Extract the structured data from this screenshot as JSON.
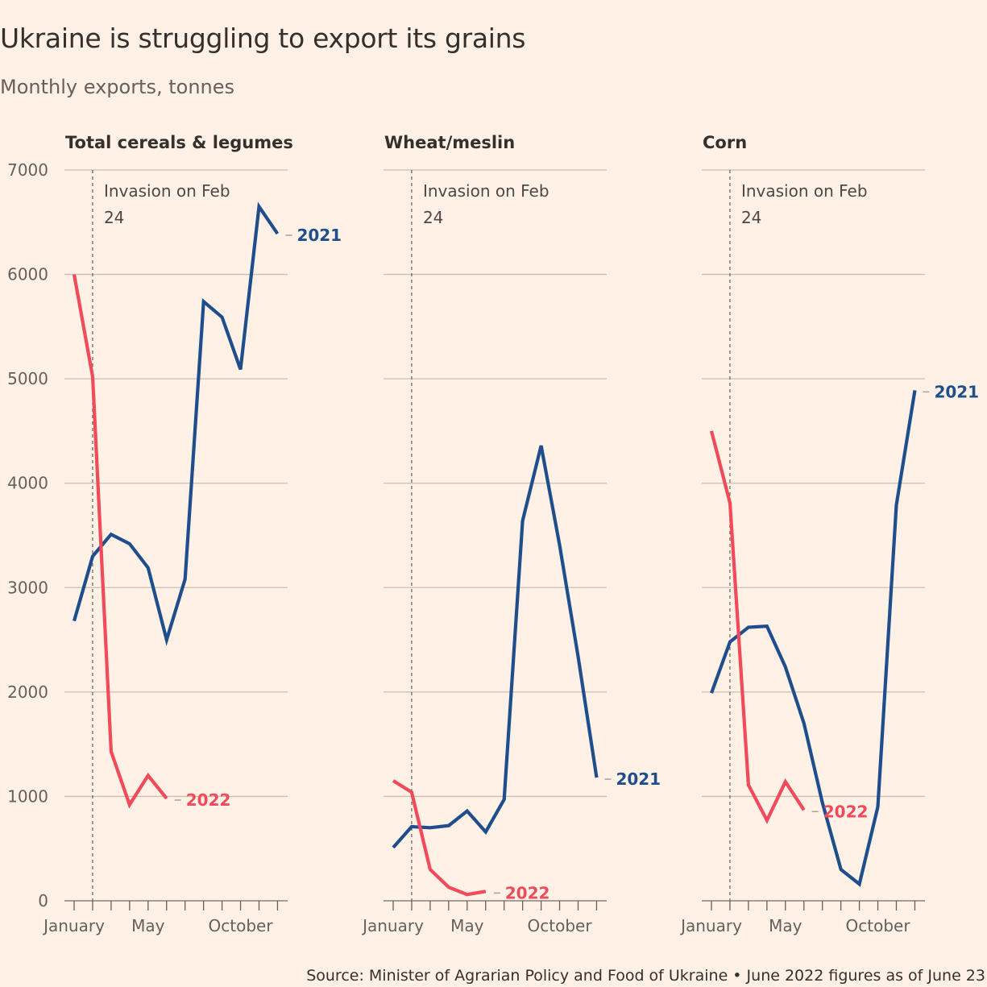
{
  "title": "Ukraine is struggling to export its grains",
  "subtitle": "Monthly exports, tonnes",
  "source": "Source: Minister of Agrarian Policy and Food of Ukraine • June 2022 figures as of June 23",
  "colors": {
    "background": "#fff1e5",
    "series_2021": "#1f4e8c",
    "series_2022": "#f04a5b",
    "grid": "#c9bfb5",
    "invasion_line": "#66605c"
  },
  "chart_data": [
    {
      "type": "line",
      "title": "Total cereals & legumes",
      "annotation": {
        "text_line1": "Invasion on Feb",
        "text_line2": "24",
        "x": 2
      },
      "x": [
        1,
        2,
        3,
        4,
        5,
        6,
        7,
        8,
        9,
        10,
        11,
        12
      ],
      "x_ticks": [
        {
          "x": 1,
          "label": "January"
        },
        {
          "x": 5,
          "label": "May"
        },
        {
          "x": 10,
          "label": "October"
        }
      ],
      "ylim": [
        0,
        7000
      ],
      "yticks": [
        0,
        1000,
        2000,
        3000,
        4000,
        5000,
        6000,
        7000
      ],
      "series": [
        {
          "name": "2021",
          "color": "#1f4e8c",
          "x": [
            1,
            2,
            3,
            4,
            5,
            6,
            7,
            8,
            9,
            10,
            11,
            12
          ],
          "values": [
            2680,
            3300,
            3510,
            3420,
            3190,
            2500,
            3080,
            5740,
            5590,
            5090,
            6650,
            6390
          ]
        },
        {
          "name": "2022",
          "color": "#f04a5b",
          "x": [
            1,
            2,
            3,
            4,
            5,
            6
          ],
          "values": [
            6000,
            5020,
            1430,
            920,
            1200,
            980
          ]
        }
      ]
    },
    {
      "type": "line",
      "title": "Wheat/meslin",
      "annotation": {
        "text_line1": "Invasion on Feb",
        "text_line2": "24",
        "x": 2
      },
      "x": [
        1,
        2,
        3,
        4,
        5,
        6,
        7,
        8,
        9,
        10,
        11,
        12
      ],
      "x_ticks": [
        {
          "x": 1,
          "label": "January"
        },
        {
          "x": 5,
          "label": "May"
        },
        {
          "x": 10,
          "label": "October"
        }
      ],
      "ylim": [
        0,
        7000
      ],
      "yticks": [
        0,
        1000,
        2000,
        3000,
        4000,
        5000,
        6000,
        7000
      ],
      "series": [
        {
          "name": "2021",
          "color": "#1f4e8c",
          "x": [
            1,
            2,
            3,
            4,
            5,
            6,
            7,
            8,
            9,
            10,
            11,
            12
          ],
          "values": [
            510,
            710,
            700,
            720,
            860,
            660,
            970,
            3640,
            4360,
            3410,
            2340,
            1180
          ]
        },
        {
          "name": "2022",
          "color": "#f04a5b",
          "x": [
            1,
            2,
            3,
            4,
            5,
            6
          ],
          "values": [
            1150,
            1040,
            300,
            130,
            60,
            90
          ]
        }
      ]
    },
    {
      "type": "line",
      "title": "Corn",
      "annotation": {
        "text_line1": "Invasion on Feb",
        "text_line2": "24",
        "x": 2
      },
      "x": [
        1,
        2,
        3,
        4,
        5,
        6,
        7,
        8,
        9,
        10,
        11,
        12
      ],
      "x_ticks": [
        {
          "x": 1,
          "label": "January"
        },
        {
          "x": 5,
          "label": "May"
        },
        {
          "x": 10,
          "label": "October"
        }
      ],
      "ylim": [
        0,
        7000
      ],
      "yticks": [
        0,
        1000,
        2000,
        3000,
        4000,
        5000,
        6000,
        7000
      ],
      "series": [
        {
          "name": "2021",
          "color": "#1f4e8c",
          "x": [
            1,
            2,
            3,
            4,
            5,
            6,
            7,
            8,
            9,
            10,
            11,
            12
          ],
          "values": [
            1990,
            2480,
            2620,
            2630,
            2240,
            1700,
            940,
            300,
            160,
            900,
            3790,
            4890
          ]
        },
        {
          "name": "2022",
          "color": "#f04a5b",
          "x": [
            1,
            2,
            3,
            4,
            5,
            6
          ],
          "values": [
            4500,
            3810,
            1110,
            770,
            1140,
            870
          ]
        }
      ]
    }
  ]
}
